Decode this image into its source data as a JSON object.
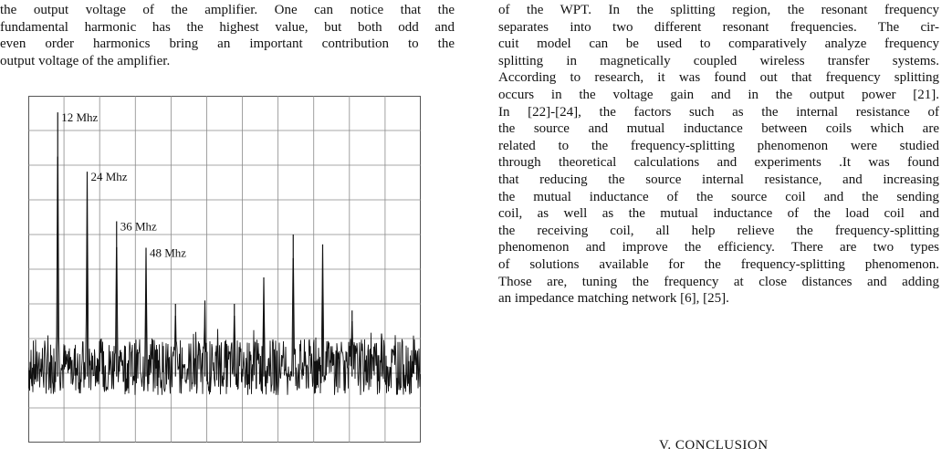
{
  "left_column": {
    "lines": [
      "the output voltage of the amplifier. One can notice that the",
      "fundamental harmonic has the highest value, but both odd and",
      "even order harmonics bring an important contribution to the",
      "output voltage of the amplifier."
    ]
  },
  "right_column": {
    "lines": [
      "of the WPT. In the splitting region, the resonant frequency",
      "separates into two different resonant frequencies. The cir-",
      "cuit model can be used to comparatively analyze frequency",
      "splitting in magnetically coupled wireless transfer systems.",
      "According to research, it was found out that frequency splitting",
      "occurs in the voltage gain and in the output power [21].",
      "In [22]-[24], the factors such as the internal resistance of",
      "the source and mutual inductance between coils which are",
      "related to the frequency-splitting phenomenon were studied",
      "through theoretical calculations and experiments .It was found",
      "that reducing the source internal resistance, and increasing",
      "the mutual inductance of the source coil and the sending",
      "coil, as well as the mutual inductance of the load coil and",
      "the receiving coil, all help relieve the frequency-splitting",
      "phenomenon and improve the efficiency. There are two types",
      "of solutions available for the frequency-splitting phenomenon.",
      "Those are, tuning the frequency at close distances and adding",
      "an impedance matching network [6], [25]."
    ],
    "heading": "V. CONCLUSION"
  },
  "chart_data": {
    "type": "line",
    "grid": true,
    "annotations": [
      {
        "text": "12 Mhz",
        "x": 12
      },
      {
        "text": "24 Mhz",
        "x": 24
      },
      {
        "text": "36 Mhz",
        "x": 36
      },
      {
        "text": "48 Mhz",
        "x": 48
      }
    ],
    "peaks": [
      {
        "x": 12,
        "y": 1.0
      },
      {
        "x": 24,
        "y": 0.82
      },
      {
        "x": 36,
        "y": 0.67
      },
      {
        "x": 48,
        "y": 0.59
      },
      {
        "x": 60,
        "y": 0.42
      },
      {
        "x": 72,
        "y": 0.43
      },
      {
        "x": 84,
        "y": 0.42
      },
      {
        "x": 96,
        "y": 0.5
      },
      {
        "x": 108,
        "y": 0.63
      },
      {
        "x": 120,
        "y": 0.6
      },
      {
        "x": 132,
        "y": 0.4
      },
      {
        "x": 144,
        "y": 0.33
      }
    ],
    "noise_floor": 0.2,
    "xlim": [
      0,
      160
    ],
    "ylim": [
      0,
      1.05
    ]
  }
}
